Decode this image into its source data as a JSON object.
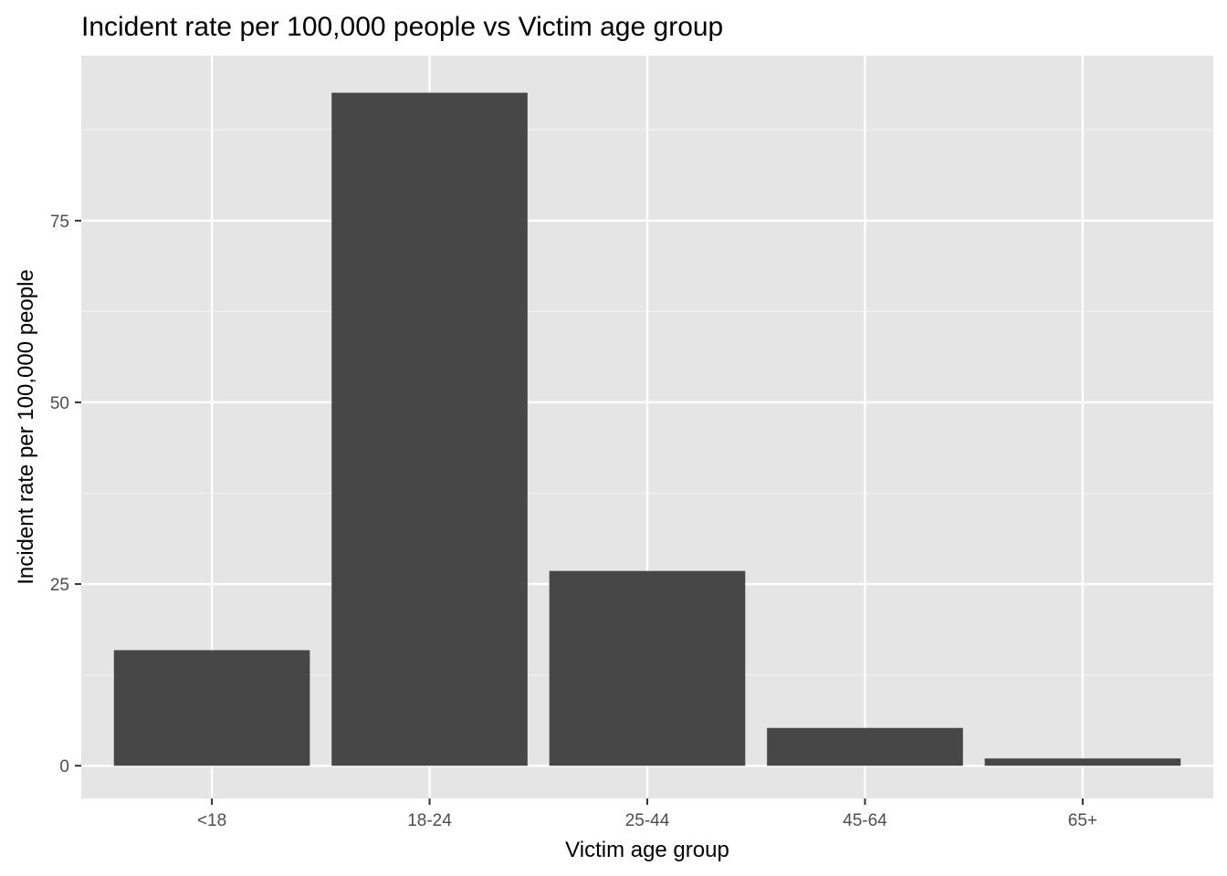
{
  "chart_data": {
    "type": "bar",
    "title": "Incident rate per 100,000 people vs Victim age group",
    "xlabel": "Victim age group",
    "ylabel": "Incident rate  per 100,000 people",
    "categories": [
      "<18",
      "18-24",
      "25-44",
      "45-64",
      "65+"
    ],
    "values": [
      15.9,
      92.6,
      26.8,
      5.2,
      1.0
    ],
    "ylim": [
      -4.5,
      97.7
    ],
    "yticks": [
      0,
      25,
      50,
      75
    ],
    "ytick_labels": [
      "0",
      "25",
      "50",
      "75"
    ],
    "grid": true,
    "legend": "none",
    "colors": {
      "bar": "#474747",
      "panel_background": "#e5e5e5",
      "grid_major": "#ffffff",
      "grid_minor": "#f2f2f2",
      "tick_mark": "#333333"
    }
  }
}
